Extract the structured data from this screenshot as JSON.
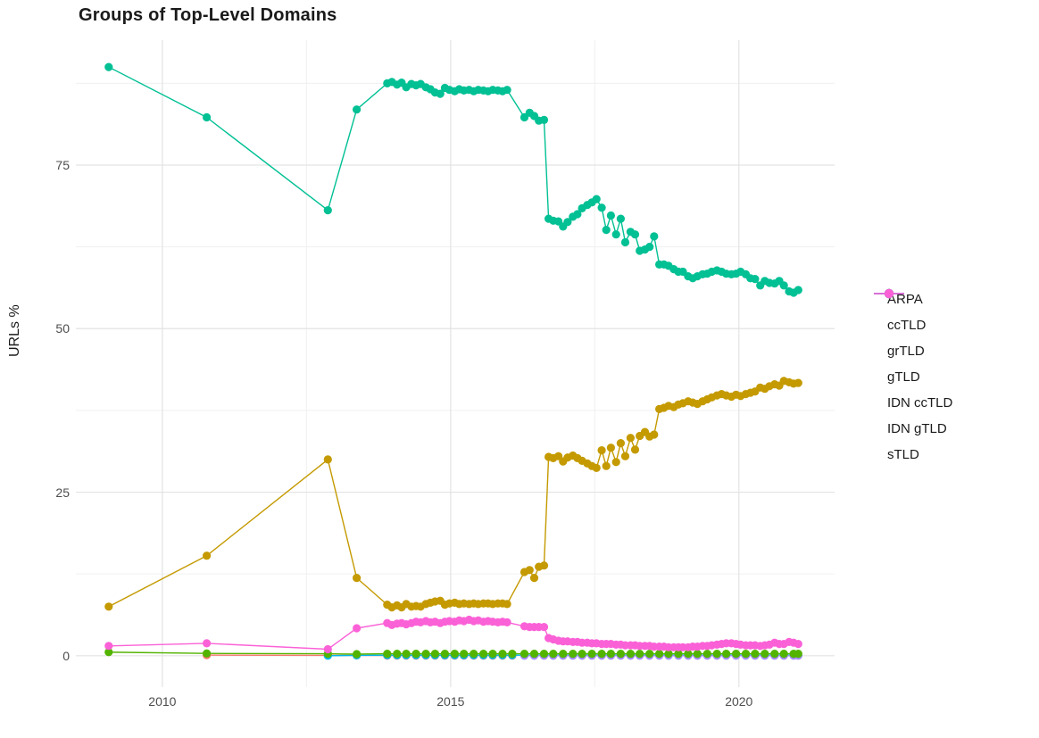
{
  "chart_data": {
    "type": "line",
    "title": "Groups of Top-Level Domains",
    "xlabel": "",
    "ylabel": "URLs %",
    "grid": true,
    "legend_position": "right",
    "xlim": [
      2008.5,
      2021.66
    ],
    "ylim": [
      -4.8,
      94.1
    ],
    "x_major_ticks": [
      {
        "value": 2010,
        "label": "2010"
      },
      {
        "value": 2015,
        "label": "2015"
      },
      {
        "value": 2020,
        "label": "2020"
      }
    ],
    "x_minor_ticks": [
      2012.5,
      2017.5
    ],
    "y_major_ticks": [
      {
        "value": 0,
        "label": "0"
      },
      {
        "value": 25,
        "label": "25"
      },
      {
        "value": 50,
        "label": "50"
      },
      {
        "value": 75,
        "label": "75"
      }
    ],
    "y_minor_ticks": [
      12.5,
      37.5,
      62.5,
      87.5
    ],
    "draw_order": [
      "ARPA",
      "IDN ccTLD",
      "IDN gTLD",
      "grTLD",
      "ccTLD",
      "gTLD",
      "sTLD"
    ],
    "colors": {
      "ARPA": "#F8766D",
      "ccTLD": "#C49A00",
      "grTLD": "#53B400",
      "gTLD": "#00C094",
      "IDN ccTLD": "#00B6EB",
      "IDN gTLD": "#A58AFF",
      "sTLD": "#FB61D7"
    },
    "series": [
      {
        "name": "ARPA",
        "color": "#F8766D",
        "x": [
          2010.77,
          2012.87,
          2013.37,
          2013.9,
          2014.07,
          2014.23,
          2014.4,
          2014.57,
          2014.73,
          2014.9,
          2015.07,
          2015.23,
          2015.4,
          2015.57,
          2015.73,
          2015.9,
          2016.07
        ],
        "y": [
          0.1,
          0.05,
          0.05,
          0.03,
          0.03,
          0.03,
          0.03,
          0.03,
          0.03,
          0.03,
          0.03,
          0.03,
          0.03,
          0.03,
          0.03,
          0.03,
          0.03
        ]
      },
      {
        "name": "ccTLD",
        "color": "#C49A00",
        "x": [
          2009.07,
          2010.77,
          2012.87,
          2013.37,
          2013.9,
          2013.98,
          2014.07,
          2014.15,
          2014.23,
          2014.32,
          2014.4,
          2014.48,
          2014.57,
          2014.65,
          2014.73,
          2014.82,
          2014.9,
          2014.98,
          2015.07,
          2015.15,
          2015.23,
          2015.32,
          2015.4,
          2015.48,
          2015.57,
          2015.65,
          2015.73,
          2015.82,
          2015.9,
          2015.98,
          2016.28,
          2016.37,
          2016.45,
          2016.53,
          2016.62,
          2016.7,
          2016.78,
          2016.87,
          2016.95,
          2017.03,
          2017.12,
          2017.2,
          2017.28,
          2017.37,
          2017.45,
          2017.53,
          2017.62,
          2017.7,
          2017.78,
          2017.87,
          2017.95,
          2018.03,
          2018.12,
          2018.2,
          2018.28,
          2018.37,
          2018.45,
          2018.53,
          2018.62,
          2018.7,
          2018.78,
          2018.87,
          2018.95,
          2019.03,
          2019.12,
          2019.2,
          2019.28,
          2019.37,
          2019.45,
          2019.53,
          2019.62,
          2019.7,
          2019.78,
          2019.87,
          2019.95,
          2020.03,
          2020.12,
          2020.2,
          2020.28,
          2020.37,
          2020.45,
          2020.53,
          2020.62,
          2020.7,
          2020.78,
          2020.87,
          2020.95,
          2021.03
        ],
        "y": [
          7.5,
          15.3,
          30.0,
          11.9,
          7.8,
          7.4,
          7.7,
          7.4,
          7.9,
          7.5,
          7.6,
          7.5,
          7.9,
          8.1,
          8.3,
          8.4,
          7.8,
          8.0,
          8.1,
          7.9,
          8.0,
          7.9,
          8.0,
          7.9,
          8.0,
          8.0,
          7.9,
          8.0,
          8.0,
          7.9,
          12.8,
          13.1,
          11.9,
          13.6,
          13.8,
          30.4,
          30.2,
          30.5,
          29.7,
          30.3,
          30.6,
          30.2,
          29.8,
          29.4,
          29.0,
          28.7,
          31.4,
          29.0,
          31.8,
          29.6,
          32.5,
          30.5,
          33.3,
          31.5,
          33.6,
          34.2,
          33.5,
          33.8,
          37.7,
          37.9,
          38.2,
          38.0,
          38.4,
          38.6,
          38.9,
          38.7,
          38.5,
          38.9,
          39.2,
          39.5,
          39.8,
          40.0,
          39.8,
          39.6,
          39.9,
          39.7,
          40.0,
          40.2,
          40.4,
          41.0,
          40.8,
          41.2,
          41.5,
          41.3,
          42.0,
          41.8,
          41.6,
          41.7
        ]
      },
      {
        "name": "grTLD",
        "color": "#53B400",
        "x": [
          2009.07,
          2010.77,
          2012.87,
          2013.37,
          2013.9,
          2014.07,
          2014.23,
          2014.4,
          2014.57,
          2014.73,
          2014.9,
          2015.07,
          2015.23,
          2015.4,
          2015.57,
          2015.73,
          2015.9,
          2016.07,
          2016.28,
          2016.45,
          2016.62,
          2016.78,
          2016.95,
          2017.12,
          2017.28,
          2017.45,
          2017.62,
          2017.78,
          2017.95,
          2018.12,
          2018.28,
          2018.45,
          2018.62,
          2018.78,
          2018.95,
          2019.12,
          2019.28,
          2019.45,
          2019.62,
          2019.78,
          2019.95,
          2020.12,
          2020.28,
          2020.45,
          2020.62,
          2020.78,
          2020.95,
          2021.03
        ],
        "y": [
          0.55,
          0.35,
          0.3,
          0.25,
          0.3,
          0.3,
          0.3,
          0.3,
          0.3,
          0.3,
          0.3,
          0.3,
          0.3,
          0.3,
          0.3,
          0.3,
          0.3,
          0.3,
          0.3,
          0.3,
          0.3,
          0.3,
          0.3,
          0.3,
          0.3,
          0.3,
          0.3,
          0.3,
          0.3,
          0.3,
          0.3,
          0.3,
          0.3,
          0.3,
          0.3,
          0.3,
          0.3,
          0.3,
          0.3,
          0.3,
          0.3,
          0.3,
          0.3,
          0.3,
          0.3,
          0.3,
          0.3,
          0.3
        ]
      },
      {
        "name": "gTLD",
        "color": "#00C094",
        "x": [
          2009.07,
          2010.77,
          2012.87,
          2013.37,
          2013.9,
          2013.98,
          2014.07,
          2014.15,
          2014.23,
          2014.32,
          2014.4,
          2014.48,
          2014.57,
          2014.65,
          2014.73,
          2014.82,
          2014.9,
          2014.98,
          2015.07,
          2015.15,
          2015.23,
          2015.32,
          2015.4,
          2015.48,
          2015.57,
          2015.65,
          2015.73,
          2015.82,
          2015.9,
          2015.98,
          2016.28,
          2016.37,
          2016.45,
          2016.53,
          2016.62,
          2016.7,
          2016.78,
          2016.87,
          2016.95,
          2017.03,
          2017.12,
          2017.2,
          2017.28,
          2017.37,
          2017.45,
          2017.53,
          2017.62,
          2017.7,
          2017.78,
          2017.87,
          2017.95,
          2018.03,
          2018.12,
          2018.2,
          2018.28,
          2018.37,
          2018.45,
          2018.53,
          2018.62,
          2018.7,
          2018.78,
          2018.87,
          2018.95,
          2019.03,
          2019.12,
          2019.2,
          2019.28,
          2019.37,
          2019.45,
          2019.53,
          2019.62,
          2019.7,
          2019.78,
          2019.87,
          2019.95,
          2020.03,
          2020.12,
          2020.2,
          2020.28,
          2020.37,
          2020.45,
          2020.53,
          2020.62,
          2020.7,
          2020.78,
          2020.87,
          2020.95,
          2021.03
        ],
        "y": [
          90.0,
          82.3,
          68.1,
          83.5,
          87.5,
          87.7,
          87.3,
          87.6,
          86.9,
          87.4,
          87.2,
          87.4,
          86.9,
          86.6,
          86.1,
          85.9,
          86.8,
          86.5,
          86.3,
          86.6,
          86.4,
          86.5,
          86.3,
          86.5,
          86.4,
          86.3,
          86.5,
          86.4,
          86.3,
          86.5,
          82.3,
          83.0,
          82.5,
          81.8,
          81.9,
          66.8,
          66.5,
          66.4,
          65.6,
          66.3,
          67.1,
          67.5,
          68.4,
          68.9,
          69.3,
          69.8,
          68.5,
          65.1,
          67.3,
          64.4,
          66.8,
          63.2,
          64.8,
          64.4,
          61.9,
          62.1,
          62.5,
          64.1,
          59.8,
          59.8,
          59.6,
          59.1,
          58.7,
          58.7,
          58.0,
          57.7,
          58.0,
          58.3,
          58.4,
          58.7,
          58.9,
          58.7,
          58.4,
          58.3,
          58.4,
          58.7,
          58.3,
          57.7,
          57.6,
          56.6,
          57.3,
          57.0,
          56.9,
          57.3,
          56.6,
          55.7,
          55.5,
          55.9
        ]
      },
      {
        "name": "IDN ccTLD",
        "color": "#00B6EB",
        "x": [
          2012.87,
          2013.37,
          2013.9,
          2014.07,
          2014.23,
          2014.4,
          2014.57,
          2014.73,
          2014.9,
          2015.07,
          2015.23,
          2015.4,
          2015.57,
          2015.73,
          2015.9,
          2016.07,
          2016.28,
          2016.45,
          2016.62,
          2016.78,
          2016.95,
          2017.12,
          2017.28,
          2017.45,
          2017.62,
          2017.78,
          2017.95,
          2018.12,
          2018.28,
          2018.45,
          2018.62,
          2018.78,
          2018.95,
          2019.12,
          2019.28,
          2019.45,
          2019.62,
          2019.78,
          2019.95,
          2020.12,
          2020.28,
          2020.45,
          2020.62,
          2020.78,
          2020.95,
          2021.03
        ],
        "y": [
          0.0,
          0.05,
          0.08,
          0.08,
          0.08,
          0.08,
          0.08,
          0.08,
          0.08,
          0.08,
          0.08,
          0.08,
          0.08,
          0.08,
          0.08,
          0.08,
          0.08,
          0.08,
          0.08,
          0.08,
          0.08,
          0.08,
          0.08,
          0.08,
          0.08,
          0.08,
          0.08,
          0.08,
          0.08,
          0.08,
          0.08,
          0.08,
          0.08,
          0.08,
          0.08,
          0.08,
          0.08,
          0.08,
          0.08,
          0.08,
          0.08,
          0.08,
          0.08,
          0.08,
          0.08,
          0.08
        ]
      },
      {
        "name": "IDN gTLD",
        "color": "#A58AFF",
        "x": [
          2016.28,
          2016.45,
          2016.62,
          2016.78,
          2016.95,
          2017.12,
          2017.28,
          2017.45,
          2017.62,
          2017.78,
          2017.95,
          2018.12,
          2018.28,
          2018.45,
          2018.62,
          2018.78,
          2018.95,
          2019.12,
          2019.28,
          2019.45,
          2019.62,
          2019.78,
          2019.95,
          2020.12,
          2020.28,
          2020.45,
          2020.62,
          2020.78,
          2020.95,
          2021.03
        ],
        "y": [
          0.0,
          0.0,
          0.0,
          0.0,
          0.0,
          0.0,
          0.0,
          0.0,
          0.0,
          0.0,
          0.0,
          0.0,
          0.0,
          0.0,
          0.0,
          0.0,
          0.0,
          0.0,
          0.0,
          0.0,
          0.0,
          0.0,
          0.0,
          0.0,
          0.0,
          0.0,
          0.0,
          0.0,
          0.0,
          0.0
        ]
      },
      {
        "name": "sTLD",
        "color": "#FB61D7",
        "x": [
          2009.07,
          2010.77,
          2012.87,
          2013.37,
          2013.9,
          2013.98,
          2014.07,
          2014.15,
          2014.23,
          2014.32,
          2014.4,
          2014.48,
          2014.57,
          2014.65,
          2014.73,
          2014.82,
          2014.9,
          2014.98,
          2015.07,
          2015.15,
          2015.23,
          2015.32,
          2015.4,
          2015.48,
          2015.57,
          2015.65,
          2015.73,
          2015.82,
          2015.9,
          2015.98,
          2016.28,
          2016.37,
          2016.45,
          2016.53,
          2016.62,
          2016.7,
          2016.78,
          2016.87,
          2016.95,
          2017.03,
          2017.12,
          2017.2,
          2017.28,
          2017.37,
          2017.45,
          2017.53,
          2017.62,
          2017.7,
          2017.78,
          2017.87,
          2017.95,
          2018.03,
          2018.12,
          2018.2,
          2018.28,
          2018.37,
          2018.45,
          2018.53,
          2018.62,
          2018.7,
          2018.78,
          2018.87,
          2018.95,
          2019.03,
          2019.12,
          2019.2,
          2019.28,
          2019.37,
          2019.45,
          2019.53,
          2019.62,
          2019.7,
          2019.78,
          2019.87,
          2019.95,
          2020.03,
          2020.12,
          2020.2,
          2020.28,
          2020.37,
          2020.45,
          2020.53,
          2020.62,
          2020.7,
          2020.78,
          2020.87,
          2020.95,
          2021.03
        ],
        "y": [
          1.5,
          1.9,
          1.0,
          4.2,
          5.0,
          4.7,
          4.9,
          5.0,
          4.8,
          5.0,
          5.2,
          5.1,
          5.3,
          5.1,
          5.2,
          5.0,
          5.2,
          5.3,
          5.2,
          5.4,
          5.3,
          5.5,
          5.3,
          5.4,
          5.2,
          5.3,
          5.2,
          5.1,
          5.2,
          5.1,
          4.5,
          4.4,
          4.4,
          4.4,
          4.4,
          2.7,
          2.5,
          2.3,
          2.2,
          2.2,
          2.1,
          2.1,
          2.0,
          2.0,
          1.9,
          1.9,
          1.8,
          1.8,
          1.8,
          1.7,
          1.7,
          1.6,
          1.6,
          1.6,
          1.5,
          1.5,
          1.5,
          1.4,
          1.4,
          1.4,
          1.3,
          1.3,
          1.3,
          1.3,
          1.3,
          1.4,
          1.4,
          1.5,
          1.5,
          1.6,
          1.7,
          1.8,
          1.9,
          1.9,
          1.8,
          1.7,
          1.6,
          1.6,
          1.6,
          1.5,
          1.6,
          1.7,
          2.0,
          1.8,
          1.8,
          2.1,
          2.0,
          1.8
        ]
      }
    ]
  }
}
